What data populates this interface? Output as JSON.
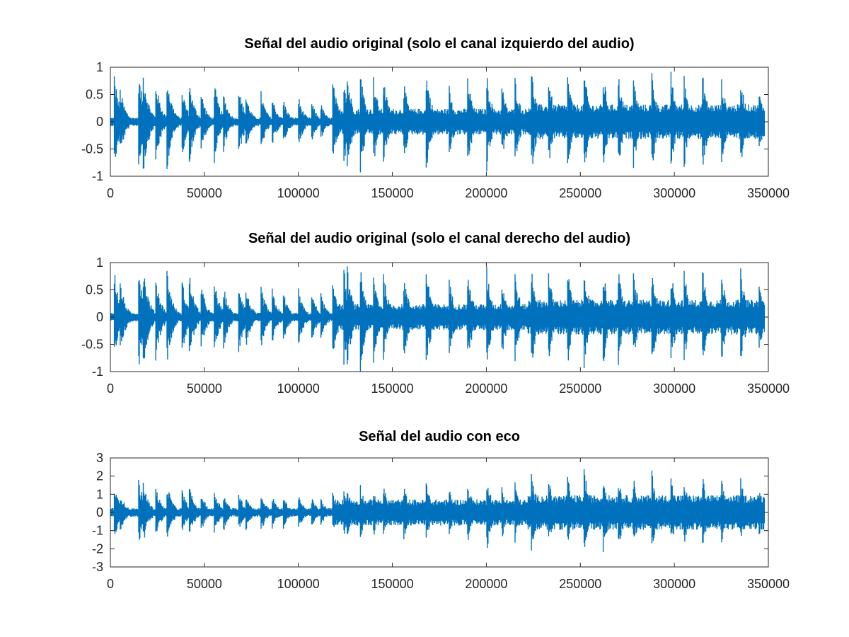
{
  "figure": {
    "background": "#ffffff"
  },
  "chart_data": [
    {
      "type": "line",
      "title": "Señal del audio original (solo el canal izquierdo del audio)",
      "xlabel": "",
      "ylabel": "",
      "xlim": [
        0,
        350000
      ],
      "ylim": [
        -1,
        1
      ],
      "xticks": [
        0,
        50000,
        100000,
        150000,
        200000,
        250000,
        300000,
        350000
      ],
      "xtick_labels": [
        "0",
        "50000",
        "100000",
        "150000",
        "200000",
        "250000",
        "300000",
        "350000"
      ],
      "yticks": [
        1,
        0.5,
        0,
        -0.5,
        -1
      ],
      "ytick_labels": [
        "1",
        "0.5",
        "0",
        "-0.5",
        "-1"
      ],
      "grid": false,
      "color": "#0072bd",
      "series": [
        {
          "x": [
            2000,
            5000,
            15000,
            17500,
            24000,
            30000,
            38000,
            42000,
            48000,
            55000,
            60000,
            68000,
            72000,
            80000,
            86000,
            92000,
            100000,
            107000,
            112000,
            118000,
            124000,
            126000,
            133000,
            140000,
            145000,
            156000,
            168000,
            180000,
            190000,
            200000,
            208000,
            215000,
            224000,
            233000,
            243000,
            252000,
            262000,
            270000,
            278000,
            288000,
            298000,
            305000,
            315000,
            325000,
            335000,
            345000
          ],
          "env": [
            0.95,
            0.7,
            0.95,
            1.0,
            0.85,
            0.95,
            0.7,
            0.8,
            0.65,
            0.85,
            0.6,
            0.75,
            0.55,
            0.6,
            0.5,
            0.45,
            0.5,
            0.4,
            0.35,
            0.9,
            1.0,
            0.95,
            1.0,
            0.85,
            0.95,
            0.8,
            1.0,
            0.75,
            0.9,
            1.0,
            0.8,
            0.95,
            1.0,
            0.9,
            1.0,
            1.0,
            1.0,
            1.0,
            0.95,
            1.0,
            1.0,
            0.95,
            0.95,
            0.85,
            0.95,
            0.6
          ]
        }
      ]
    },
    {
      "type": "line",
      "title": "Señal del audio original (solo el canal derecho del audio)",
      "xlabel": "",
      "ylabel": "",
      "xlim": [
        0,
        350000
      ],
      "ylim": [
        -1,
        1
      ],
      "xticks": [
        0,
        50000,
        100000,
        150000,
        200000,
        250000,
        300000,
        350000
      ],
      "xtick_labels": [
        "0",
        "50000",
        "100000",
        "150000",
        "200000",
        "250000",
        "300000",
        "350000"
      ],
      "yticks": [
        1,
        0.5,
        0,
        -0.5,
        -1
      ],
      "ytick_labels": [
        "1",
        "0.5",
        "0",
        "-0.5",
        "-1"
      ],
      "grid": false,
      "color": "#0072bd",
      "series": [
        {
          "x": [
            2000,
            5000,
            15000,
            17500,
            24000,
            30000,
            38000,
            42000,
            48000,
            55000,
            60000,
            68000,
            72000,
            80000,
            86000,
            92000,
            100000,
            107000,
            112000,
            118000,
            124000,
            126000,
            133000,
            140000,
            145000,
            156000,
            168000,
            180000,
            190000,
            200000,
            208000,
            215000,
            224000,
            233000,
            243000,
            252000,
            262000,
            270000,
            278000,
            288000,
            298000,
            305000,
            315000,
            325000,
            335000,
            345000
          ],
          "env": [
            0.95,
            0.75,
            1.0,
            1.0,
            0.85,
            0.95,
            0.75,
            0.85,
            0.7,
            0.8,
            0.65,
            0.75,
            0.6,
            0.65,
            0.55,
            0.5,
            0.55,
            0.5,
            0.45,
            0.9,
            1.0,
            0.95,
            1.0,
            0.85,
            0.95,
            0.85,
            1.0,
            0.8,
            0.9,
            1.0,
            0.85,
            0.95,
            1.0,
            0.9,
            1.0,
            1.0,
            1.0,
            1.0,
            0.95,
            1.0,
            1.0,
            0.95,
            1.0,
            0.9,
            1.0,
            0.7
          ]
        }
      ]
    },
    {
      "type": "line",
      "title": "Señal del audio con eco",
      "xlabel": "",
      "ylabel": "",
      "xlim": [
        0,
        350000
      ],
      "ylim": [
        -3,
        3
      ],
      "xticks": [
        0,
        50000,
        100000,
        150000,
        200000,
        250000,
        300000,
        350000
      ],
      "xtick_labels": [
        "0",
        "50000",
        "100000",
        "150000",
        "200000",
        "250000",
        "300000",
        "350000"
      ],
      "yticks": [
        3,
        2,
        1,
        0,
        -1,
        -2,
        -3
      ],
      "ytick_labels": [
        "3",
        "2",
        "1",
        "0",
        "-1",
        "-2",
        "-3"
      ],
      "grid": false,
      "color": "#0072bd",
      "series": [
        {
          "x": [
            2000,
            5000,
            15000,
            17500,
            24000,
            30000,
            38000,
            42000,
            48000,
            55000,
            60000,
            68000,
            72000,
            80000,
            86000,
            92000,
            100000,
            107000,
            112000,
            118000,
            124000,
            126000,
            133000,
            140000,
            145000,
            156000,
            168000,
            180000,
            190000,
            200000,
            208000,
            215000,
            224000,
            233000,
            243000,
            252000,
            262000,
            270000,
            278000,
            288000,
            298000,
            305000,
            315000,
            325000,
            335000,
            345000
          ],
          "env": [
            1.6,
            1.3,
            1.9,
            1.8,
            1.6,
            1.8,
            1.4,
            1.5,
            1.3,
            1.5,
            1.2,
            1.3,
            1.1,
            1.2,
            1.0,
            0.95,
            1.0,
            0.9,
            0.8,
            1.3,
            1.5,
            1.4,
            1.6,
            1.4,
            1.7,
            1.6,
            1.8,
            1.5,
            1.8,
            2.4,
            1.7,
            1.9,
            2.3,
            2.0,
            2.2,
            2.6,
            2.4,
            2.3,
            2.2,
            2.4,
            2.2,
            2.0,
            2.1,
            1.9,
            2.1,
            1.4
          ]
        }
      ]
    }
  ]
}
